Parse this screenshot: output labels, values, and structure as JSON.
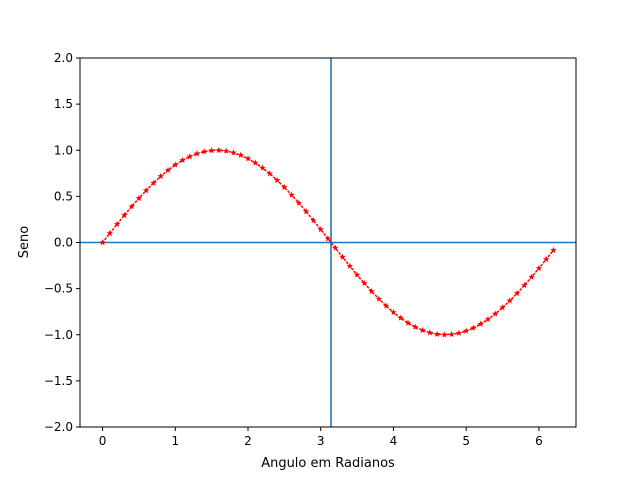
{
  "chart_data": {
    "type": "line",
    "title": "",
    "xlabel": "Angulo em Radianos",
    "ylabel": "Seno",
    "xlim": [
      -0.31,
      6.51
    ],
    "ylim": [
      -2.0,
      2.0
    ],
    "xticks": [
      0,
      1,
      2,
      3,
      4,
      5,
      6
    ],
    "xtick_labels": [
      "0",
      "1",
      "2",
      "3",
      "4",
      "5",
      "6"
    ],
    "yticks": [
      -2.0,
      -1.5,
      -1.0,
      -0.5,
      0.0,
      0.5,
      1.0,
      1.5,
      2.0
    ],
    "ytick_labels": [
      "−2.0",
      "−1.5",
      "−1.0",
      "−0.5",
      "0.0",
      "0.5",
      "1.0",
      "1.5",
      "2.0"
    ],
    "grid": false,
    "series": [
      {
        "color": "#ff0000",
        "style": "dotted line with small star markers",
        "x": [
          0.0,
          0.1,
          0.2,
          0.3,
          0.4,
          0.5,
          0.6,
          0.7,
          0.8,
          0.9,
          1.0,
          1.1,
          1.2,
          1.3,
          1.4,
          1.5,
          1.6,
          1.7,
          1.8,
          1.9,
          2.0,
          2.1,
          2.2,
          2.3,
          2.4,
          2.5,
          2.6,
          2.7,
          2.8,
          2.9,
          3.0,
          3.1,
          3.2,
          3.3,
          3.4,
          3.5,
          3.6,
          3.7,
          3.8,
          3.9,
          4.0,
          4.1,
          4.2,
          4.3,
          4.4,
          4.5,
          4.6,
          4.7,
          4.8,
          4.9,
          5.0,
          5.1,
          5.2,
          5.3,
          5.4,
          5.5,
          5.6,
          5.7,
          5.8,
          5.9,
          6.0,
          6.1,
          6.2
        ],
        "y": [
          0.0,
          0.0998,
          0.1987,
          0.2955,
          0.3894,
          0.4794,
          0.5646,
          0.6442,
          0.7174,
          0.7833,
          0.8415,
          0.8912,
          0.932,
          0.9636,
          0.9854,
          0.9975,
          0.9996,
          0.9917,
          0.9738,
          0.9463,
          0.9093,
          0.8632,
          0.8085,
          0.7457,
          0.6755,
          0.5985,
          0.5155,
          0.4274,
          0.335,
          0.2392,
          0.1411,
          0.0416,
          -0.0584,
          -0.1577,
          -0.2555,
          -0.3508,
          -0.4425,
          -0.5298,
          -0.6119,
          -0.6878,
          -0.7568,
          -0.8183,
          -0.8716,
          -0.9162,
          -0.9516,
          -0.9775,
          -0.9937,
          -0.9999,
          -0.9962,
          -0.9825,
          -0.9589,
          -0.9258,
          -0.8835,
          -0.8323,
          -0.7728,
          -0.7055,
          -0.6313,
          -0.5507,
          -0.4646,
          -0.3739,
          -0.2794,
          -0.1822,
          -0.0831
        ]
      }
    ],
    "reference_lines": {
      "color": "#1f77b4",
      "horizontal_y": 0.0,
      "vertical_x": 3.14159
    }
  }
}
